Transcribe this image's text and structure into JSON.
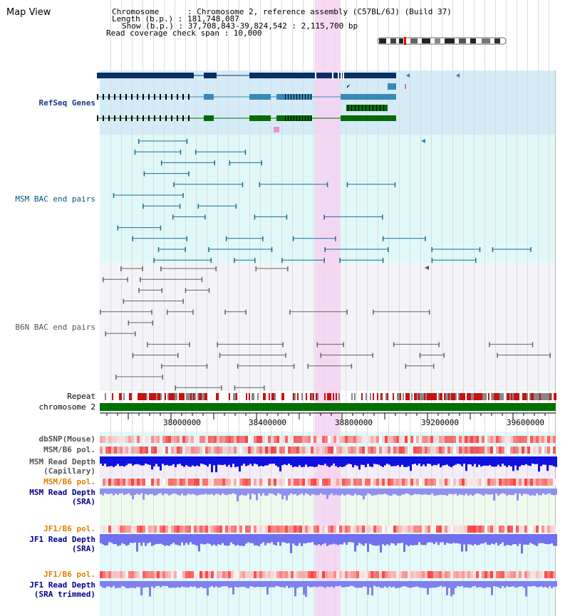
{
  "title": "Map View",
  "header": {
    "chromosome_line": "Chromosome      : Chromosome 2, reference assembly (C57BL/6J) (Build 37)",
    "length_line": "Length (b.p.) : 181,748,087",
    "show_line": "Show (b.p.) : 37,708,843-39,824,542 : 2,115,700 bp",
    "coverage_line": "Read coverage check span : 10,000"
  },
  "tracks": {
    "refseq": {
      "label": "RefSeq Genes",
      "color": "#1a3a8a"
    },
    "msm_bac": {
      "label": "MSM BAC end pairs",
      "color": "#005a80"
    },
    "b6n_bac": {
      "label": "B6N BAC end pairs",
      "color": "#555555"
    },
    "repeat": {
      "label": "Repeat"
    },
    "chromosome": {
      "label": "chromosome 2"
    },
    "dbsnp": {
      "label": "dbSNP(Mouse)"
    },
    "msm_b6_pol_1": {
      "label": "MSM/B6 pol."
    },
    "msm_depth_cap": {
      "label1": "MSM Read Depth",
      "label2": "(Capillary)"
    },
    "msm_b6_pol_2": {
      "label": "MSM/B6 pol."
    },
    "msm_depth_sra": {
      "label1": "MSM Read Depth",
      "label2": "(SRA)"
    },
    "jf1_b6_pol_1": {
      "label": "JF1/B6 pol."
    },
    "jf1_depth_sra": {
      "label1": "JF1 Read Depth",
      "label2": "(SRA)"
    },
    "jf1_b6_pol_2": {
      "label": "JF1/B6 pol."
    },
    "jf1_depth_trim": {
      "label1": "JF1 Read Depth",
      "label2": "(SRA trimmed)"
    }
  },
  "axis_ticks": [
    "38000000",
    "38400000",
    "38800000",
    "39200000",
    "39600000"
  ],
  "colors": {
    "highlight": "#f6d2f2",
    "refseq_bg": "#d4ecf8",
    "msm_bg": "#e0f8f8",
    "b6n_bg": "#f4f4f8",
    "chrom": "#007000",
    "repeat_red": "#cc0000",
    "depth_blue": "#2020e0",
    "depth_light": "#8080f0",
    "label_blue": "#00008b",
    "label_orange": "#e08000"
  }
}
